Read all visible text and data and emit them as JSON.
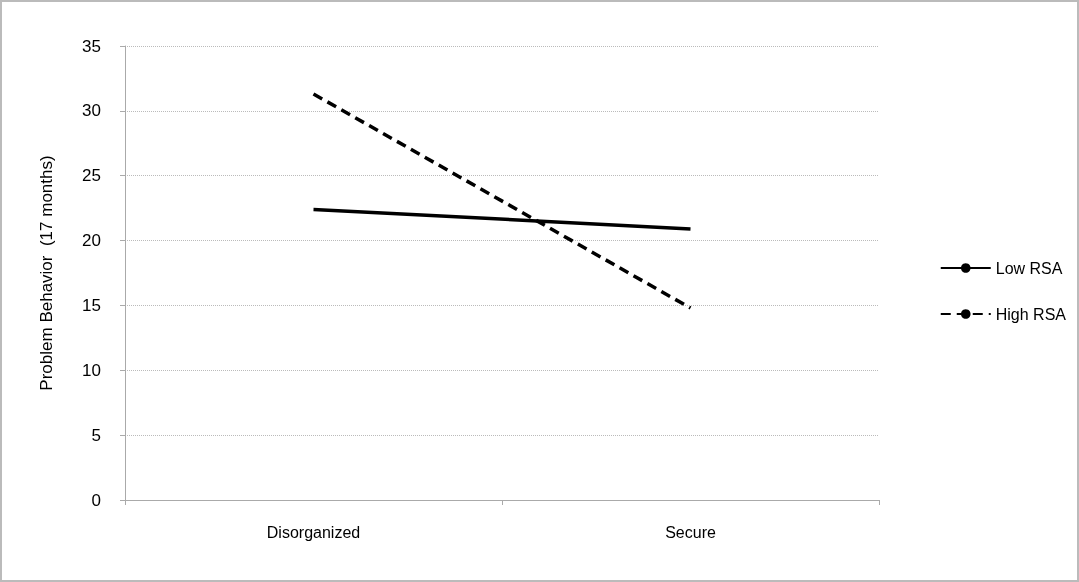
{
  "chart_data": {
    "type": "line",
    "ylabel": "Problem Behavior  (17 months)",
    "categories": [
      "Disorganized",
      "Secure"
    ],
    "series": [
      {
        "name": "Low RSA",
        "color": "#000000",
        "values": [
          22.4,
          20.9
        ],
        "line_style": "solid"
      },
      {
        "name": "High RSA",
        "color": "#000000",
        "values": [
          31.3,
          14.8
        ],
        "line_style": "dashed"
      }
    ],
    "ylim": [
      0,
      35
    ],
    "yticks": [
      0,
      5,
      10,
      15,
      20,
      25,
      30,
      35
    ],
    "grid": "y",
    "legend": "right",
    "marker": "none"
  }
}
